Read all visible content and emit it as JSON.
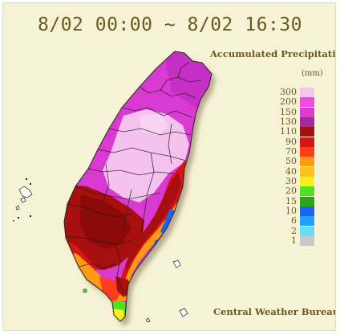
{
  "time_range": "8/02 00:00 ~ 8/02 16:30",
  "legend": {
    "title": "Accumulated Precipitation",
    "unit": "(mm)",
    "items": [
      {
        "label": "300",
        "color": "#f7c4ef"
      },
      {
        "label": "200",
        "color": "#ef4de0"
      },
      {
        "label": "150",
        "color": "#d93ad2"
      },
      {
        "label": "130",
        "color": "#a02ca0"
      },
      {
        "label": "110",
        "color": "#a80f0f"
      },
      {
        "label": "90",
        "color": "#d81414"
      },
      {
        "label": "70",
        "color": "#ff3c1e"
      },
      {
        "label": "50",
        "color": "#ff9b12"
      },
      {
        "label": "40",
        "color": "#ffc21a"
      },
      {
        "label": "30",
        "color": "#ffee1e"
      },
      {
        "label": "20",
        "color": "#4ce41e"
      },
      {
        "label": "15",
        "color": "#28a819"
      },
      {
        "label": "10",
        "color": "#1a64ef"
      },
      {
        "label": "6",
        "color": "#1ea4ff"
      },
      {
        "label": "2",
        "color": "#67dcff"
      },
      {
        "label": "1",
        "color": "#c8c8c8"
      }
    ]
  },
  "credit": "Central Weather Bureau"
}
